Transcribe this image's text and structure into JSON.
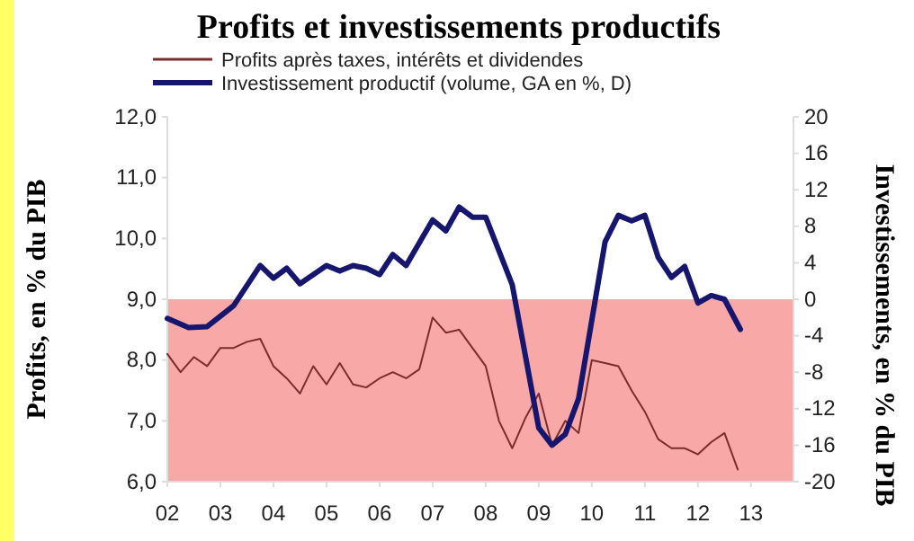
{
  "chart_data": {
    "type": "line",
    "title": "Profits et investissements productifs",
    "ylabel": "Profits, en % du PIB",
    "y2label": "Investissements, en % du PIB",
    "series": [
      {
        "name": "Profits après taxes, intérêts et dividendes",
        "color": "#7b2c2c",
        "x": [
          2002,
          2002.25,
          2002.5,
          2002.75,
          2003,
          2003.25,
          2003.5,
          2003.75,
          2004,
          2004.25,
          2004.5,
          2004.75,
          2005,
          2005.25,
          2005.5,
          2005.75,
          2006,
          2006.25,
          2006.5,
          2006.75,
          2007,
          2007.25,
          2007.5,
          2007.75,
          2008,
          2008.25,
          2008.5,
          2008.75,
          2009,
          2009.25,
          2009.5,
          2009.75,
          2010,
          2010.25,
          2010.5,
          2010.75,
          2011,
          2011.25,
          2011.5,
          2011.75,
          2012,
          2012.25,
          2012.5,
          2012.75
        ],
        "values": [
          8.1,
          7.8,
          8.05,
          7.9,
          8.2,
          8.2,
          8.3,
          8.35,
          7.9,
          7.7,
          7.45,
          7.9,
          7.6,
          7.95,
          7.6,
          7.55,
          7.7,
          7.8,
          7.7,
          7.85,
          8.7,
          8.45,
          8.5,
          8.2,
          7.9,
          7.0,
          6.55,
          7.05,
          7.45,
          6.6,
          7.0,
          6.8,
          8.0,
          7.95,
          7.9,
          7.5,
          7.15,
          6.7,
          6.55,
          6.55,
          6.45,
          6.65,
          6.8,
          6.2
        ]
      },
      {
        "name": "Investissement productif (volume, GA en %, D)",
        "color": "#16166e",
        "axis": "y2",
        "x": [
          2002,
          2002.4,
          2002.75,
          2003.25,
          2003.75,
          2004,
          2004.25,
          2004.5,
          2005,
          2005.25,
          2005.5,
          2005.75,
          2006,
          2006.25,
          2006.5,
          2007,
          2007.25,
          2007.5,
          2007.75,
          2008,
          2008.5,
          2009,
          2009.25,
          2009.5,
          2009.75,
          2010.25,
          2010.5,
          2010.75,
          2011,
          2011.25,
          2011.5,
          2011.75,
          2012,
          2012.25,
          2012.5,
          2012.8
        ],
        "values": [
          -2.1,
          -3.1,
          -3.0,
          -0.7,
          3.7,
          2.3,
          3.4,
          1.7,
          3.7,
          3.1,
          3.7,
          3.4,
          2.7,
          4.9,
          3.7,
          8.7,
          7.5,
          10.1,
          9.0,
          9.0,
          1.6,
          -14.1,
          -16.0,
          -14.8,
          -10.9,
          6.3,
          9.2,
          8.6,
          9.2,
          4.6,
          2.4,
          3.6,
          -0.4,
          0.4,
          0.0,
          -3.3
        ]
      }
    ],
    "xlim": [
      2002,
      2013.8
    ],
    "xticks": [
      {
        "value": 2002,
        "label": "02"
      },
      {
        "value": 2003,
        "label": "03"
      },
      {
        "value": 2004,
        "label": "04"
      },
      {
        "value": 2005,
        "label": "05"
      },
      {
        "value": 2006,
        "label": "06"
      },
      {
        "value": 2007,
        "label": "07"
      },
      {
        "value": 2008,
        "label": "08"
      },
      {
        "value": 2009,
        "label": "09"
      },
      {
        "value": 2010,
        "label": "10"
      },
      {
        "value": 2011,
        "label": "11"
      },
      {
        "value": 2012,
        "label": "12"
      },
      {
        "value": 2013,
        "label": "13"
      }
    ],
    "ylim": [
      6,
      12
    ],
    "yticks": [
      {
        "value": 6,
        "label": "6,0"
      },
      {
        "value": 7,
        "label": "7,0"
      },
      {
        "value": 8,
        "label": "8,0"
      },
      {
        "value": 9,
        "label": "9,0"
      },
      {
        "value": 10,
        "label": "10,0"
      },
      {
        "value": 11,
        "label": "11,0"
      },
      {
        "value": 12,
        "label": "12,0"
      }
    ],
    "y2lim": [
      -20,
      20
    ],
    "y2ticks": [
      -20,
      -16,
      -12,
      -8,
      -4,
      0,
      4,
      8,
      12,
      16,
      20
    ],
    "bands": [
      {
        "axis": "y",
        "from": 6,
        "to": 9,
        "color": "#f9a8a8"
      }
    ],
    "legend": "top",
    "grid": false
  }
}
